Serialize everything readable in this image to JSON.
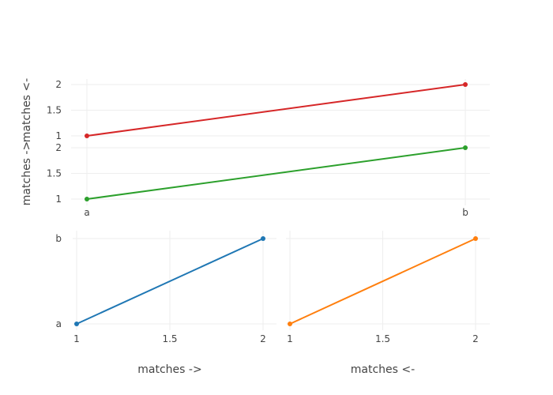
{
  "chart_data": [
    {
      "type": "line",
      "panel": "top",
      "x": [
        "a",
        "b"
      ],
      "series": [
        {
          "values": [
            1,
            2
          ],
          "color": "#d62728"
        }
      ],
      "ylabel": "matches <-",
      "ylim": [
        1,
        2
      ],
      "yticks": [
        "1",
        "1.5",
        "2"
      ],
      "grid": true
    },
    {
      "type": "line",
      "panel": "middle",
      "x": [
        "a",
        "b"
      ],
      "series": [
        {
          "values": [
            1,
            2
          ],
          "color": "#2ca02c"
        }
      ],
      "ylabel": "matches ->",
      "ylim": [
        1,
        2
      ],
      "yticks": [
        "1",
        "1.5",
        "2"
      ],
      "xticks": [
        "a",
        "b"
      ],
      "grid": true
    },
    {
      "type": "line",
      "panel": "bottom-left",
      "x": [
        1,
        2
      ],
      "series": [
        {
          "values": [
            "a",
            "b"
          ],
          "color": "#1f77b4"
        }
      ],
      "xlabel": "matches ->",
      "xlim": [
        1,
        2
      ],
      "xticks": [
        "1",
        "1.5",
        "2"
      ],
      "yticks": [
        "a",
        "b"
      ],
      "grid": true
    },
    {
      "type": "line",
      "panel": "bottom-right",
      "x": [
        1,
        2
      ],
      "series": [
        {
          "values": [
            "a",
            "b"
          ],
          "color": "#ff7f0e"
        }
      ],
      "xlabel": "matches <-",
      "xlim": [
        1,
        2
      ],
      "xticks": [
        "1",
        "1.5",
        "2"
      ],
      "grid": true
    }
  ]
}
